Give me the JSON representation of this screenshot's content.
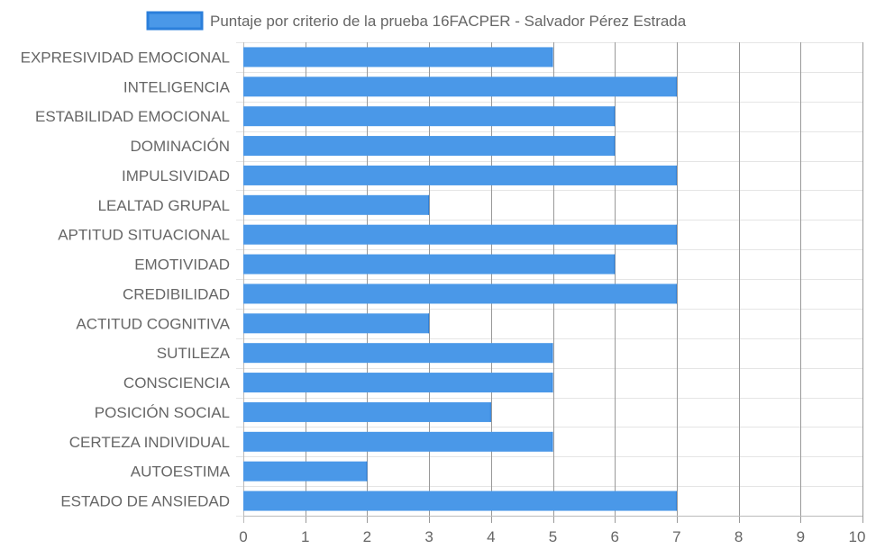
{
  "chart_data": {
    "type": "bar",
    "orientation": "horizontal",
    "categories": [
      "EXPRESIVIDAD EMOCIONAL",
      "INTELIGENCIA",
      "ESTABILIDAD EMOCIONAL",
      "DOMINACIÓN",
      "IMPULSIVIDAD",
      "LEALTAD GRUPAL",
      "APTITUD SITUACIONAL",
      "EMOTIVIDAD",
      "CREDIBILIDAD",
      "ACTITUD COGNITIVA",
      "SUTILEZA",
      "CONSCIENCIA",
      "POSICIÓN SOCIAL",
      "CERTEZA INDIVIDUAL",
      "AUTOESTIMA",
      "ESTADO DE ANSIEDAD"
    ],
    "series": [
      {
        "name": "Puntaje por criterio de la prueba 16FACPER - Salvador Pérez Estrada",
        "values": [
          5,
          7,
          6,
          6,
          7,
          3,
          7,
          6,
          7,
          3,
          5,
          5,
          4,
          5,
          2,
          7
        ],
        "color": "#4a98e8",
        "border_color": "#2b7fdb"
      }
    ],
    "xlim": [
      0,
      10
    ],
    "x_ticks": [
      "0",
      "1",
      "2",
      "3",
      "4",
      "5",
      "6",
      "7",
      "8",
      "9",
      "10"
    ],
    "grid": true,
    "legend_position": "top"
  }
}
